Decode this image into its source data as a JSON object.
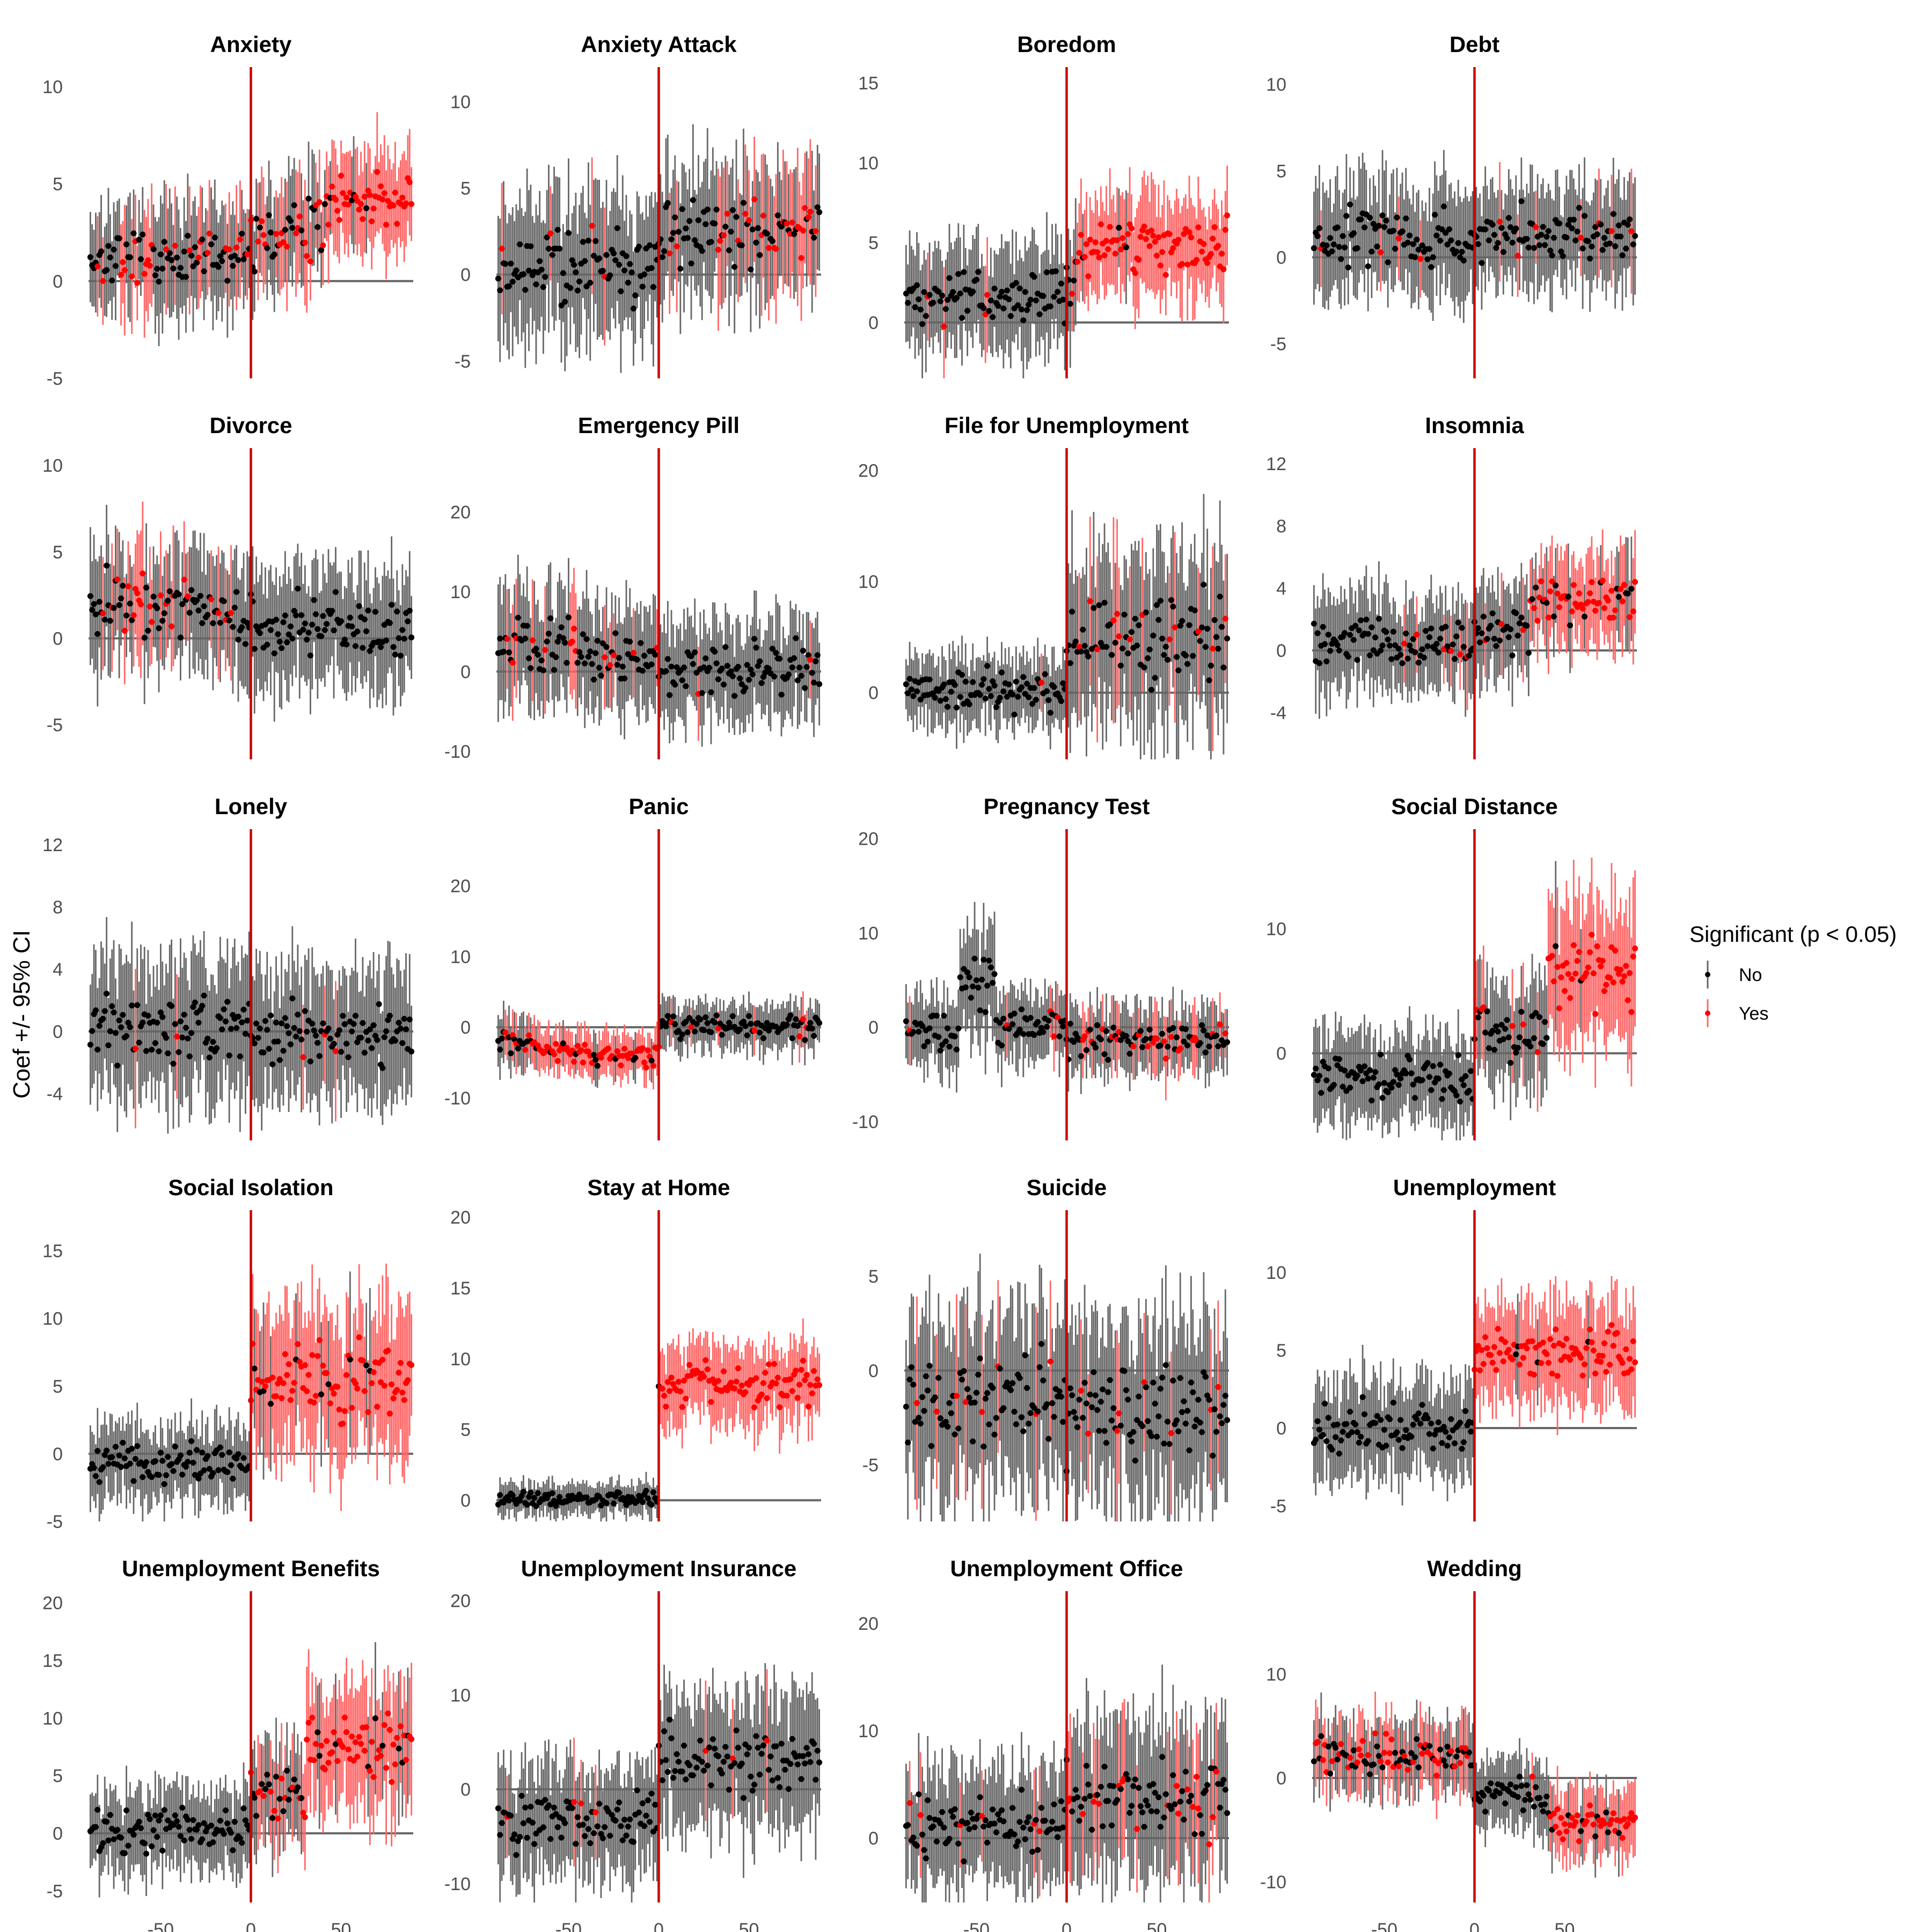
{
  "figure": {
    "ylabel": "Coef +/- 95% CI",
    "legend": {
      "title": "Significant (p < 0.05)",
      "placement": "right",
      "items": [
        {
          "label": "No",
          "color": "#000000",
          "ci_color": "#666666"
        },
        {
          "label": "Yes",
          "color": "#ff0000",
          "ci_color": "#ff6666"
        }
      ]
    },
    "event_line_color": "#cc0000",
    "zero_line_color": "#666666",
    "shared_x": {
      "xlim": [
        -90,
        90
      ],
      "ticks": [
        -50,
        0,
        50
      ]
    }
  },
  "chart_data": [
    {
      "type": "scatter",
      "title": "Anxiety",
      "ylim": [
        -5,
        11
      ],
      "yticks": [
        -5,
        0,
        5,
        10
      ],
      "segments": [
        [
          -90,
          -1,
          1.2,
          2.5,
          0.3
        ],
        [
          -60,
          -30,
          1.0,
          2.2,
          0.25
        ],
        [
          -30,
          0,
          1.5,
          2.5,
          0.25
        ],
        [
          0,
          20,
          2.2,
          2.5,
          0.3
        ],
        [
          20,
          40,
          2.6,
          2.5,
          0.4
        ],
        [
          40,
          90,
          4.2,
          2.3,
          0.85
        ]
      ]
    },
    {
      "type": "scatter",
      "title": "Anxiety Attack",
      "ylim": [
        -6,
        12
      ],
      "yticks": [
        -5,
        0,
        5,
        10
      ],
      "segments": [
        [
          -90,
          -1,
          0.6,
          3.6,
          0.05
        ],
        [
          0,
          20,
          2.2,
          3.5,
          0.2
        ],
        [
          20,
          90,
          2.6,
          3.5,
          0.3
        ]
      ]
    },
    {
      "type": "scatter",
      "title": "Boredom",
      "ylim": [
        -3.5,
        16
      ],
      "yticks": [
        0,
        5,
        10,
        15
      ],
      "segments": [
        [
          -90,
          -1,
          1.6,
          2.8,
          0.05
        ],
        [
          0,
          5,
          2.8,
          3.0,
          0.3
        ],
        [
          5,
          90,
          4.8,
          2.8,
          0.95
        ]
      ]
    },
    {
      "type": "scatter",
      "title": "Debt",
      "ylim": [
        -7,
        11
      ],
      "yticks": [
        -5,
        0,
        5,
        10
      ],
      "segments": [
        [
          -90,
          -1,
          1.0,
          2.8,
          0.06
        ],
        [
          0,
          90,
          1.3,
          2.7,
          0.08
        ]
      ]
    },
    {
      "type": "scatter",
      "title": "Divorce",
      "ylim": [
        -7,
        11
      ],
      "yticks": [
        -5,
        0,
        5,
        10
      ],
      "segments": [
        [
          -90,
          -30,
          2.0,
          3.2,
          0.2
        ],
        [
          -30,
          0,
          1.5,
          3.2,
          0.08
        ],
        [
          0,
          90,
          0.6,
          3.0,
          0.05
        ]
      ]
    },
    {
      "type": "scatter",
      "title": "Emergency Pill",
      "ylim": [
        -11,
        28
      ],
      "yticks": [
        -10,
        0,
        10,
        20
      ],
      "segments": [
        [
          -90,
          -40,
          3.0,
          6.5,
          0.15
        ],
        [
          -40,
          0,
          2.0,
          6.0,
          0.1
        ],
        [
          0,
          90,
          0.3,
          5.5,
          0.03
        ]
      ]
    },
    {
      "type": "scatter",
      "title": "File for Unemployment",
      "ylim": [
        -6,
        22
      ],
      "yticks": [
        0,
        10,
        20
      ],
      "segments": [
        [
          -90,
          -1,
          0.2,
          2.8,
          0.02
        ],
        [
          0,
          90,
          4.5,
          7.0,
          0.15
        ]
      ]
    },
    {
      "type": "scatter",
      "title": "Insomnia",
      "ylim": [
        -7,
        13
      ],
      "yticks": [
        -4,
        0,
        4,
        8,
        12
      ],
      "segments": [
        [
          -90,
          -1,
          0.3,
          2.8,
          0.05
        ],
        [
          0,
          30,
          1.2,
          2.8,
          0.1
        ],
        [
          30,
          90,
          3.2,
          2.7,
          0.7
        ]
      ]
    },
    {
      "type": "scatter",
      "title": "Lonely",
      "ylim": [
        -7,
        13
      ],
      "yticks": [
        -4,
        0,
        4,
        8,
        12
      ],
      "segments": [
        [
          -90,
          -1,
          0.3,
          4.0,
          0.02
        ],
        [
          0,
          90,
          -0.3,
          3.8,
          0.02
        ]
      ]
    },
    {
      "type": "scatter",
      "title": "Panic",
      "ylim": [
        -16,
        28
      ],
      "yticks": [
        -10,
        0,
        10,
        20
      ],
      "segments": [
        [
          -90,
          -70,
          -2.0,
          3.5,
          0.2
        ],
        [
          -70,
          0,
          -3.8,
          3.0,
          0.9
        ],
        [
          0,
          90,
          0.2,
          3.0,
          0.06
        ]
      ]
    },
    {
      "type": "scatter",
      "title": "Pregnancy Test",
      "ylim": [
        -12,
        21
      ],
      "yticks": [
        -10,
        0,
        10,
        20
      ],
      "segments": [
        [
          -90,
          -60,
          -0.5,
          3.5,
          0.1
        ],
        [
          -60,
          -40,
          5.0,
          5.0,
          0.05
        ],
        [
          -40,
          0,
          0.2,
          3.5,
          0.1
        ],
        [
          0,
          90,
          -1.5,
          3.3,
          0.2
        ]
      ]
    },
    {
      "type": "scatter",
      "title": "Social Distance",
      "ylim": [
        -7,
        18
      ],
      "yticks": [
        0,
        10
      ],
      "segments": [
        [
          -90,
          -1,
          -2.0,
          3.2,
          0.0
        ],
        [
          0,
          40,
          1.5,
          3.8,
          0.1
        ],
        [
          40,
          90,
          6.5,
          5.2,
          0.9
        ]
      ]
    },
    {
      "type": "scatter",
      "title": "Social Isolation",
      "ylim": [
        -5,
        18
      ],
      "yticks": [
        -5,
        0,
        5,
        10,
        15
      ],
      "segments": [
        [
          -90,
          -1,
          -0.7,
          2.5,
          0.0
        ],
        [
          0,
          90,
          5.5,
          5.0,
          0.9
        ]
      ]
    },
    {
      "type": "scatter",
      "title": "Stay at Home",
      "ylim": [
        -1.5,
        20.5
      ],
      "yticks": [
        0,
        5,
        10,
        15,
        20
      ],
      "segments": [
        [
          -90,
          -1,
          0.1,
          1.0,
          0.0
        ],
        [
          0,
          15,
          8.0,
          2.5,
          0.95
        ],
        [
          15,
          40,
          8.5,
          2.5,
          1.0
        ],
        [
          40,
          90,
          8.0,
          2.5,
          1.0
        ]
      ]
    },
    {
      "type": "scatter",
      "title": "Suicide",
      "ylim": [
        -8,
        8.5
      ],
      "yticks": [
        -5,
        0,
        5
      ],
      "segments": [
        [
          -90,
          -1,
          -1.5,
          4.2,
          0.08
        ],
        [
          0,
          90,
          -2.2,
          4.2,
          0.08
        ]
      ]
    },
    {
      "type": "scatter",
      "title": "Unemployment",
      "ylim": [
        -6,
        14
      ],
      "yticks": [
        -5,
        0,
        5,
        10
      ],
      "segments": [
        [
          -90,
          -1,
          0.0,
          2.8,
          0.0
        ],
        [
          0,
          90,
          5.0,
          3.0,
          0.95
        ]
      ]
    },
    {
      "type": "scatter",
      "title": "Unemployment Benefits",
      "ylim": [
        -6,
        21
      ],
      "yticks": [
        -5,
        0,
        5,
        10,
        15,
        20
      ],
      "segments": [
        [
          -90,
          -1,
          0.3,
          3.2,
          0.0
        ],
        [
          0,
          30,
          3.5,
          3.8,
          0.4
        ],
        [
          30,
          90,
          7.5,
          5.0,
          0.9
        ]
      ]
    },
    {
      "type": "scatter",
      "title": "Unemployment Insurance",
      "ylim": [
        -12,
        21
      ],
      "yticks": [
        -10,
        0,
        10,
        20
      ],
      "segments": [
        [
          -90,
          -1,
          -3.5,
          5.5,
          0.06
        ],
        [
          0,
          90,
          3.0,
          6.5,
          0.05
        ]
      ]
    },
    {
      "type": "scatter",
      "title": "Unemployment Office",
      "ylim": [
        -6,
        23
      ],
      "yticks": [
        0,
        10,
        20
      ],
      "segments": [
        [
          -90,
          -1,
          1.0,
          5.0,
          0.06
        ],
        [
          0,
          90,
          3.5,
          6.5,
          0.2
        ]
      ]
    },
    {
      "type": "scatter",
      "title": "Wedding",
      "ylim": [
        -12,
        18
      ],
      "yticks": [
        -10,
        0,
        10
      ],
      "segments": [
        [
          -90,
          -1,
          2.3,
          3.2,
          0.45
        ],
        [
          0,
          40,
          -1.5,
          3.0,
          0.05
        ],
        [
          40,
          90,
          -4.5,
          3.2,
          0.75
        ]
      ]
    }
  ]
}
